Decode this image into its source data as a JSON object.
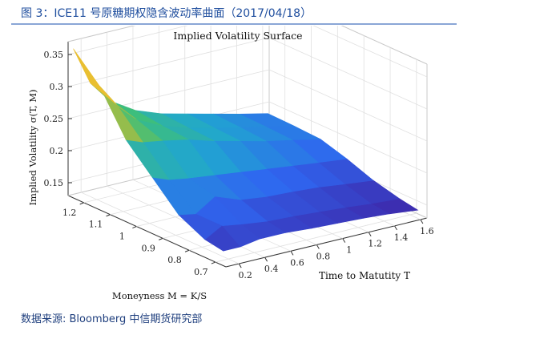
{
  "figure": {
    "caption": "图 3：ICE11 号原糖期权隐含波动率曲面（2017/04/18）",
    "source": "数据来源: Bloomberg 中信期货研究部"
  },
  "chart_data": {
    "type": "surface",
    "title": "Implied Volatility Surface",
    "zlabel": "Implied Volatility σ(T, M)",
    "xlabel": "Time to Matutity T",
    "ylabel": "Moneyness M = K/S",
    "z_ticks": [
      "0.15",
      "0.2",
      "0.25",
      "0.3",
      "0.35"
    ],
    "x_ticks": [
      "0.2",
      "0.4",
      "0.6",
      "0.8",
      "1",
      "1.2",
      "1.4",
      "1.6"
    ],
    "y_ticks": [
      "0.7",
      "0.8",
      "0.9",
      "1",
      "1.1",
      "1.2"
    ],
    "zlim": [
      0.13,
      0.37
    ],
    "xlim": [
      0.1,
      1.65
    ],
    "ylim": [
      0.66,
      1.26
    ],
    "grid": true,
    "colormap": [
      "#3e26a8",
      "#2f66f0",
      "#20a6d0",
      "#3ebf7a",
      "#b8bc3a",
      "#f5c02f",
      "#f9fb0e"
    ],
    "surface_slices": [
      {
        "moneyness": 1.25,
        "T": [
          0.12,
          0.25,
          0.4,
          0.6,
          0.8,
          1.0,
          1.2,
          1.4,
          1.62
        ],
        "iv": [
          0.36,
          0.3,
          0.265,
          0.24,
          0.225,
          0.215,
          0.205,
          0.195,
          0.185
        ]
      },
      {
        "moneyness": 1.15,
        "T": [
          0.12,
          0.25,
          0.4,
          0.6,
          0.8,
          1.0,
          1.2,
          1.4,
          1.62
        ],
        "iv": [
          0.32,
          0.285,
          0.255,
          0.235,
          0.222,
          0.212,
          0.203,
          0.194,
          0.184
        ]
      },
      {
        "moneyness": 1.05,
        "T": [
          0.12,
          0.25,
          0.4,
          0.6,
          0.8,
          1.0,
          1.2,
          1.4,
          1.62
        ],
        "iv": [
          0.255,
          0.245,
          0.24,
          0.232,
          0.22,
          0.21,
          0.2,
          0.192,
          0.182
        ]
      },
      {
        "moneyness": 0.95,
        "T": [
          0.12,
          0.25,
          0.4,
          0.6,
          0.8,
          1.0,
          1.2,
          1.4,
          1.62
        ],
        "iv": [
          0.215,
          0.205,
          0.2,
          0.195,
          0.19,
          0.185,
          0.18,
          0.175,
          0.17
        ]
      },
      {
        "moneyness": 0.85,
        "T": [
          0.12,
          0.25,
          0.4,
          0.6,
          0.8,
          1.0,
          1.2,
          1.4,
          1.62
        ],
        "iv": [
          0.175,
          0.17,
          0.19,
          0.175,
          0.17,
          0.168,
          0.165,
          0.16,
          0.155
        ]
      },
      {
        "moneyness": 0.75,
        "T": [
          0.12,
          0.25,
          0.4,
          0.6,
          0.8,
          1.0,
          1.2,
          1.4,
          1.62
        ],
        "iv": [
          0.155,
          0.17,
          0.165,
          0.16,
          0.158,
          0.155,
          0.152,
          0.148,
          0.145
        ]
      },
      {
        "moneyness": 0.68,
        "T": [
          0.12,
          0.25,
          0.4,
          0.6,
          0.8,
          1.0,
          1.2,
          1.4,
          1.62
        ],
        "iv": [
          0.15,
          0.15,
          0.155,
          0.155,
          0.152,
          0.15,
          0.148,
          0.145,
          0.14
        ]
      }
    ]
  }
}
